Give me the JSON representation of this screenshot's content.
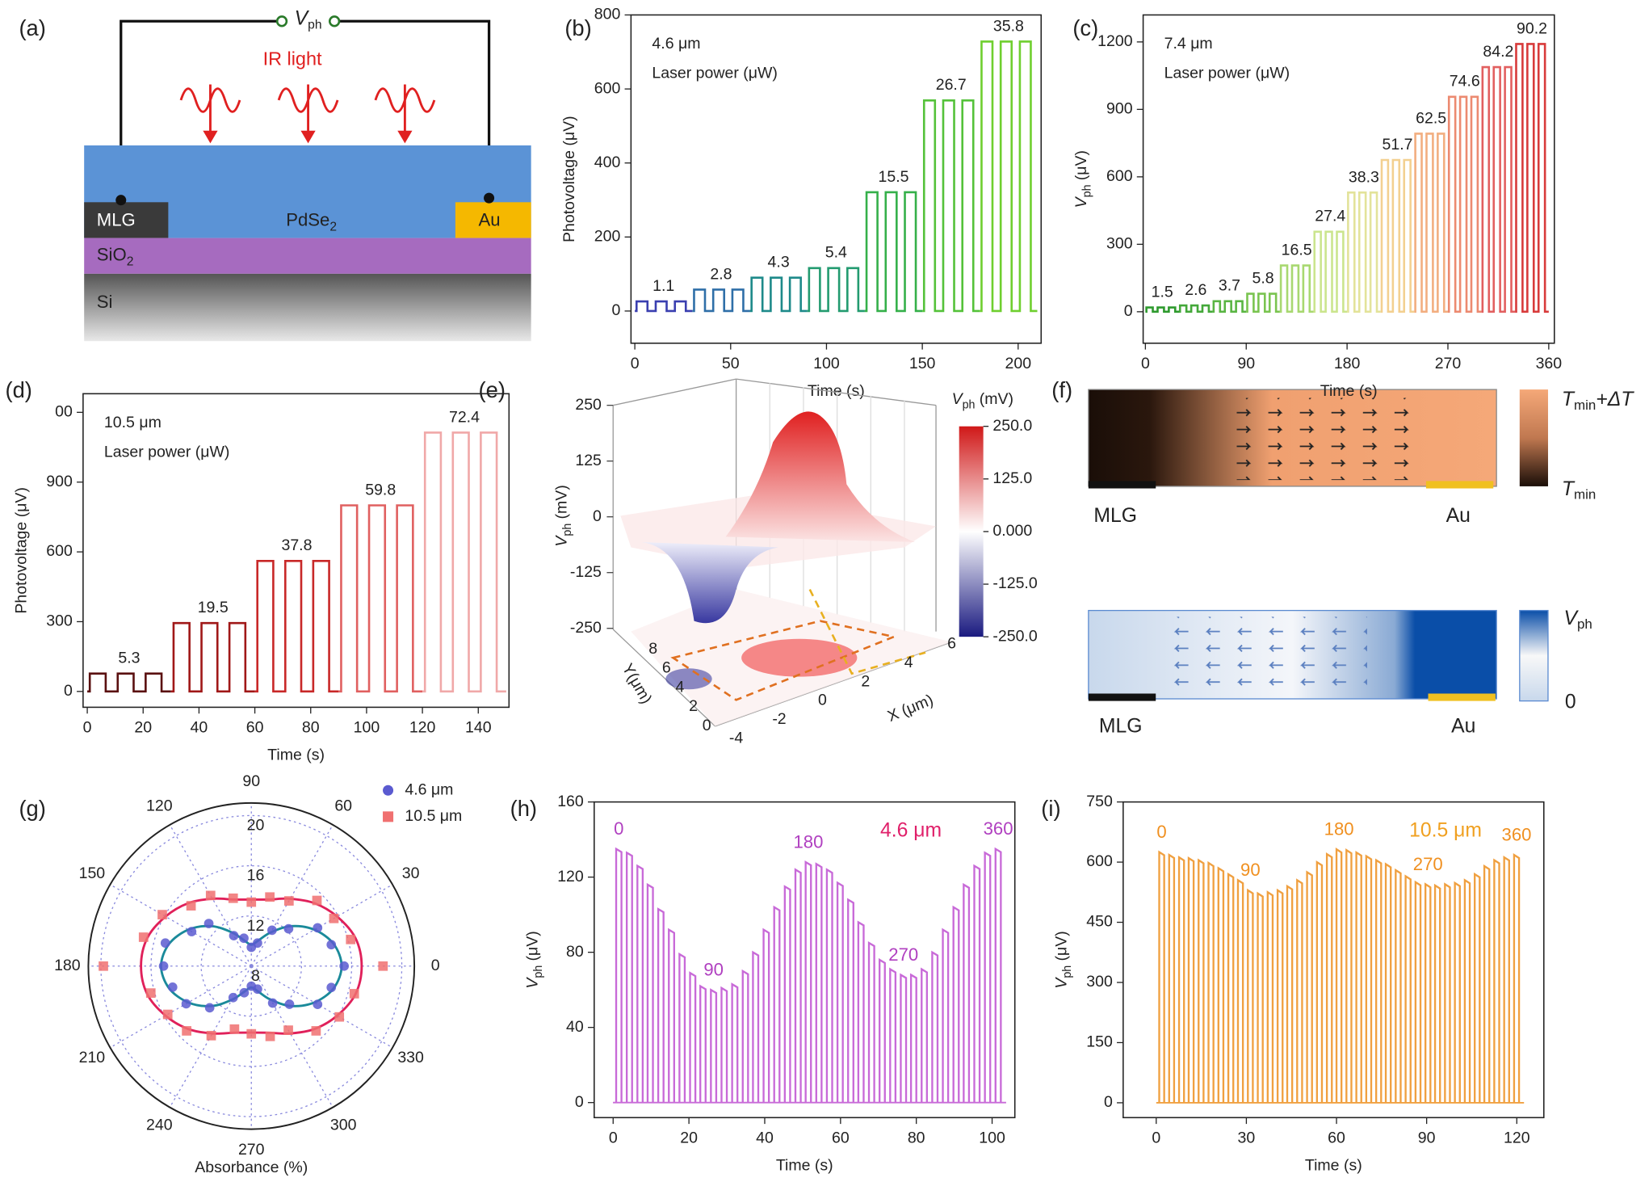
{
  "panel_a": {
    "panel_label": "(a)",
    "vph": {
      "main": "V",
      "sub": "ph"
    },
    "light": "IR light",
    "mlg": "MLG",
    "pdse2": {
      "main": "PdSe",
      "sub": "2"
    },
    "au": "Au",
    "sio2": {
      "main": "SiO",
      "sub": "2"
    },
    "si": "Si"
  },
  "panel_f": {
    "panel_label": "(f)",
    "top": {
      "left": "MLG",
      "right": "Au",
      "high": {
        "main": "T",
        "sub": "min",
        "rest": "+ΔT"
      },
      "low": {
        "main": "T",
        "sub": "min"
      }
    },
    "bottom": {
      "left": "MLG",
      "right": "Au",
      "high": {
        "main": "V",
        "sub": "ph"
      },
      "low": "0"
    }
  },
  "chart_data": [
    {
      "type": "step-pulse",
      "panel_label": "(b)",
      "annotations": [
        "4.6 μm",
        "Laser power (μW)"
      ],
      "xlabel": "Time (s)",
      "ylabel": "Photovoltage (μV)",
      "x": [
        0,
        30,
        60,
        90,
        120,
        150,
        180
      ],
      "values": [
        26,
        58,
        90,
        116,
        321,
        569,
        728
      ],
      "laser_power": [
        1.1,
        2.8,
        4.3,
        5.4,
        15.5,
        26.7,
        35.8
      ],
      "colors": [
        "#3a3fb0",
        "#2f6fa8",
        "#1e8a8a",
        "#239b70",
        "#35b04a",
        "#55c23a",
        "#6fcf2f"
      ],
      "xlim": [
        -2,
        212
      ],
      "xticks": [
        0,
        50,
        100,
        150,
        200
      ],
      "ylim": [
        -87,
        800
      ],
      "yticks": [
        0,
        200,
        400,
        600,
        800
      ]
    },
    {
      "type": "step-pulse",
      "panel_label": "(c)",
      "annotations": [
        "7.4 μm",
        "Laser power (μW)"
      ],
      "xlabel": "Time (s)",
      "ylabel": {
        "main": "V",
        "sub": "ph",
        "rest": "(μV)"
      },
      "x": [
        0,
        30,
        60,
        90,
        120,
        150,
        180,
        210,
        240,
        270,
        300,
        330
      ],
      "values": [
        19,
        28,
        47,
        80,
        206,
        356,
        530,
        675,
        792,
        956,
        1088,
        1191
      ],
      "laser_power": [
        1.5,
        2.6,
        3.7,
        5.8,
        16.5,
        27.4,
        38.3,
        51.7,
        62.5,
        74.6,
        84.2,
        90.2
      ],
      "colors": [
        "#2e9a2e",
        "#44a83a",
        "#5ab543",
        "#7ac450",
        "#a8d870",
        "#cbe58e",
        "#e3e39a",
        "#f3d090",
        "#f2ae80",
        "#ec8a70",
        "#e26060",
        "#d83b3b"
      ],
      "xlim": [
        -2,
        365
      ],
      "xticks": [
        0,
        90,
        180,
        270,
        360
      ],
      "ylim": [
        -140,
        1320
      ],
      "yticks": [
        0,
        300,
        600,
        900,
        1200
      ]
    },
    {
      "type": "step-pulse",
      "panel_label": "(d)",
      "annotations": [
        "10.5 μm",
        "Laser power (μW)"
      ],
      "xlabel": "Time (s)",
      "ylabel": "Photovoltage (μV)",
      "x": [
        0,
        30,
        60,
        90,
        120
      ],
      "values": [
        77,
        294,
        561,
        800,
        1113
      ],
      "laser_power": [
        5.3,
        19.5,
        37.8,
        59.8,
        72.4
      ],
      "colors": [
        "#5a1010",
        "#a01818",
        "#c82828",
        "#e06060",
        "#f0a8a8"
      ],
      "xlim": [
        -1.5,
        151
      ],
      "xticks": [
        0,
        20,
        40,
        60,
        80,
        100,
        120,
        140
      ],
      "ylim": [
        -68,
        1280
      ],
      "yticks": [
        0,
        300,
        600,
        900,
        {
          "value": 1200,
          "label": "00"
        }
      ]
    },
    {
      "type": "surface3d",
      "panel_label": "(e)",
      "zlabel": {
        "main": "V",
        "sub": "ph",
        "rest": "(mV)"
      },
      "zlim": [
        -250,
        250
      ],
      "zticks": [
        250,
        125,
        0,
        -125,
        -250
      ],
      "xlabel": "X (μm)",
      "xlim": [
        -4,
        6
      ],
      "xticks": [
        -4,
        -2,
        0,
        2,
        4,
        6
      ],
      "ylabel": "Y(μm)",
      "ylim": [
        0,
        8
      ],
      "yticks": [
        0,
        2,
        4,
        6,
        8
      ],
      "colorbar": {
        "title": {
          "main": "V",
          "sub": "ph",
          "rest": "(mV)"
        },
        "clim": [
          -250,
          250
        ],
        "ticks": [
          {
            "value": 250,
            "label": "250.0"
          },
          {
            "value": 125,
            "label": "125.0"
          },
          {
            "value": 0,
            "label": "0.000"
          },
          {
            "value": -125,
            "label": "-125.0"
          },
          {
            "value": -250,
            "label": "-250.0"
          }
        ]
      }
    },
    {
      "type": "polar",
      "panel_label": "(g)",
      "xlabel": "Absorbance (%)",
      "legend": "upper right",
      "rlim": [
        8,
        21
      ],
      "rticks": [
        8,
        12,
        16,
        20
      ],
      "thetaticks": [
        0,
        30,
        60,
        90,
        120,
        150,
        180,
        210,
        240,
        270,
        300,
        330
      ],
      "theta": [
        0,
        15,
        30,
        45,
        60,
        75,
        90,
        105,
        120,
        135,
        150,
        165,
        180,
        195,
        210,
        225,
        240,
        255,
        270,
        285,
        300,
        315,
        330,
        345
      ],
      "series": [
        {
          "name": "4.6 μm",
          "color": "#5a5ad0",
          "fit_color": "#1a8a9a",
          "marker": "circle",
          "values": [
            15.4,
            14.6,
            14.1,
            12.2,
            11.3,
            9.9,
            9.5,
            10.3,
            10.8,
            12.8,
            13.5,
            15.1,
            15.0,
            14.5,
            14.0,
            12.7,
            10.9,
            10.2,
            9.6,
            9.9,
            11.4,
            12.3,
            14.1,
            14.6
          ],
          "fit": [
            15.2,
            14.8,
            13.8,
            12.5,
            11.1,
            10.1,
            9.7,
            10.1,
            11.1,
            12.5,
            13.8,
            14.8,
            15.2,
            14.8,
            13.8,
            12.5,
            11.1,
            10.1,
            9.7,
            10.1,
            11.1,
            12.5,
            13.8,
            14.8
          ]
        },
        {
          "name": "10.5 μm",
          "color": "#f07070",
          "fit_color": "#e0205a",
          "marker": "square",
          "values": [
            18.5,
            16.2,
            15.6,
            15.4,
            14.0,
            13.7,
            13.1,
            13.6,
            14.5,
            14.8,
            16.2,
            16.9,
            19.8,
            16.3,
            15.7,
            15.3,
            14.4,
            13.2,
            13.4,
            13.8,
            13.9,
            15.3,
            16.1,
            16.5
          ],
          "fit": [
            16.8,
            16.6,
            15.9,
            15.1,
            14.2,
            13.5,
            13.3,
            13.5,
            14.2,
            15.1,
            15.9,
            16.6,
            16.8,
            16.6,
            15.9,
            15.1,
            14.2,
            13.5,
            13.3,
            13.5,
            14.2,
            15.1,
            15.9,
            16.6
          ]
        }
      ]
    },
    {
      "type": "pulse",
      "panel_label": "(h)",
      "title": "4.6 μm",
      "title_color": "#e0206a",
      "color": "#c86ad8",
      "label_color": "#b040c0",
      "angle_labels": [
        0,
        90,
        180,
        270,
        360
      ],
      "xlabel": "Time (s)",
      "ylabel": {
        "main": "V",
        "sub": "ph",
        "rest": "(μV)"
      },
      "x": [
        0.8,
        3.6,
        6.4,
        9.1,
        11.9,
        14.7,
        17.5,
        20.3,
        23.0,
        25.8,
        28.6,
        31.4,
        34.2,
        36.9,
        39.7,
        42.5,
        45.3,
        48.1,
        50.8,
        53.6,
        56.4,
        59.2,
        62.0,
        64.7,
        67.5,
        70.3,
        73.1,
        75.9,
        78.6,
        81.4,
        84.2,
        87.0,
        89.8,
        92.5,
        95.3,
        98.1,
        100.9
      ],
      "values": [
        135,
        133,
        126,
        116,
        103,
        92,
        79,
        69,
        62,
        60,
        61,
        63,
        70,
        80,
        92,
        104,
        115,
        124,
        128,
        127,
        124,
        117,
        108,
        96,
        85,
        76,
        71,
        68,
        68,
        71,
        80,
        92,
        104,
        116,
        126,
        133,
        135
      ],
      "xlim": [
        -5,
        106
      ],
      "xticks": [
        0,
        20,
        40,
        60,
        80,
        100
      ],
      "ylim": [
        -8,
        160
      ],
      "yticks": [
        0,
        40,
        80,
        120,
        160
      ]
    },
    {
      "type": "pulse",
      "panel_label": "(i)",
      "title": "10.5 μm",
      "title_color": "#f0a020",
      "color": "#f0a040",
      "label_color": "#f09020",
      "angle_labels": [
        0,
        90,
        180,
        270,
        360
      ],
      "xlabel": "Time (s)",
      "ylabel": {
        "main": "V",
        "sub": "ph",
        "rest": "(μV)"
      },
      "x": [
        1.0,
        4.3,
        7.6,
        10.8,
        14.1,
        17.4,
        20.7,
        24.0,
        27.2,
        30.5,
        33.8,
        37.1,
        40.4,
        43.6,
        46.9,
        50.2,
        53.5,
        56.8,
        60.0,
        63.3,
        66.6,
        69.9,
        73.2,
        76.4,
        79.7,
        83.0,
        86.3,
        89.6,
        92.8,
        96.1,
        99.4,
        102.7,
        106.0,
        109.2,
        112.5,
        115.8,
        119.1
      ],
      "values": [
        625,
        618,
        612,
        610,
        605,
        598,
        585,
        570,
        555,
        530,
        522,
        525,
        530,
        540,
        555,
        575,
        600,
        620,
        632,
        630,
        624,
        615,
        605,
        595,
        580,
        565,
        550,
        545,
        542,
        545,
        548,
        555,
        570,
        590,
        605,
        612,
        618
      ],
      "xlim": [
        -11,
        129
      ],
      "xticks": [
        0,
        30,
        60,
        90,
        120
      ],
      "ylim": [
        -37,
        750
      ],
      "yticks": [
        0,
        150,
        300,
        450,
        600,
        750
      ]
    }
  ]
}
